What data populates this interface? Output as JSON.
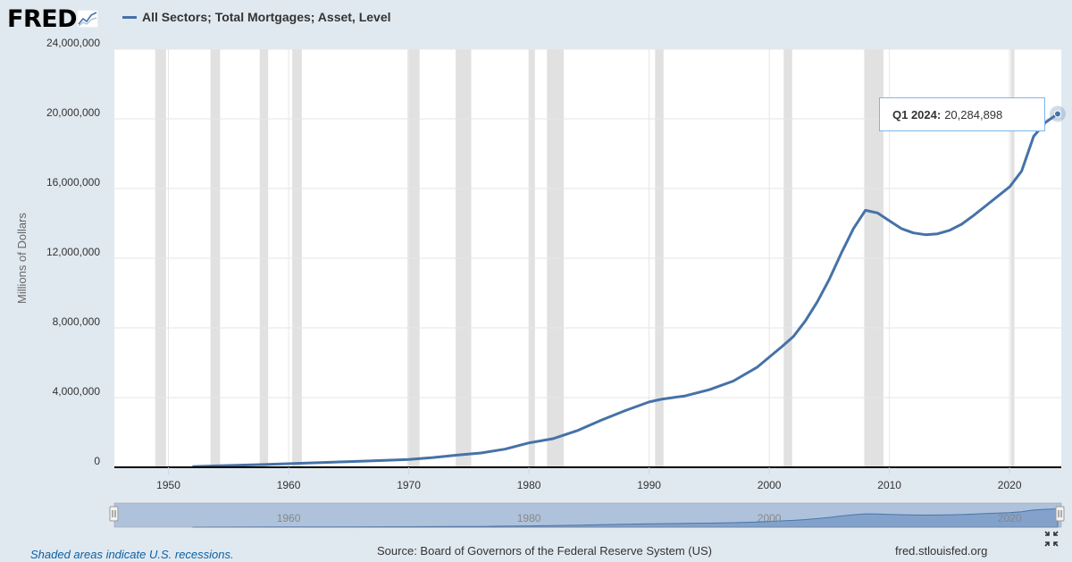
{
  "header": {
    "logo_text": "FRED",
    "series_title": "All Sectors; Total Mortgages; Asset, Level",
    "series_color": "#4572a7"
  },
  "tooltip": {
    "period": "Q1 2024:",
    "value": "20,284,898"
  },
  "navigator": {
    "tick_labels": [
      "1960",
      "1980",
      "2000",
      "2020"
    ]
  },
  "footer": {
    "recession_note": "Shaded areas indicate U.S. recessions.",
    "source": "Source: Board of Governors of the Federal Reserve System (US)",
    "url": "fred.stlouisfed.org"
  },
  "chart_data": {
    "type": "line",
    "title": "",
    "xlabel": "",
    "ylabel": "Millions of Dollars",
    "xlim": [
      1945.5,
      2024.3
    ],
    "ylim": [
      0,
      24000000
    ],
    "x_ticks": [
      "1950",
      "1960",
      "1970",
      "1980",
      "1990",
      "2000",
      "2010",
      "2020"
    ],
    "y_ticks": [
      "0",
      "4,000,000",
      "8,000,000",
      "12,000,000",
      "16,000,000",
      "20,000,000",
      "24,000,000"
    ],
    "grid": true,
    "series": [
      {
        "name": "All Sectors; Total Mortgages; Asset, Level",
        "color": "#4572a7",
        "x": [
          1952,
          1955,
          1958,
          1961,
          1964,
          1967,
          1970,
          1972,
          1974,
          1976,
          1978,
          1980,
          1982,
          1984,
          1986,
          1988,
          1990,
          1991,
          1993,
          1995,
          1997,
          1999,
          2001,
          2002,
          2003,
          2004,
          2005,
          2006,
          2007,
          2008,
          2009,
          2010,
          2011,
          2012,
          2013,
          2014,
          2015,
          2016,
          2017,
          2018,
          2019,
          2020,
          2021,
          2022,
          2023,
          2024
        ],
        "values": [
          40000,
          100000,
          160000,
          230000,
          300000,
          370000,
          450000,
          560000,
          700000,
          820000,
          1040000,
          1400000,
          1640000,
          2100000,
          2700000,
          3250000,
          3750000,
          3900000,
          4100000,
          4450000,
          4950000,
          5750000,
          6900000,
          7500000,
          8400000,
          9500000,
          10800000,
          12300000,
          13700000,
          14750000,
          14600000,
          14150000,
          13700000,
          13450000,
          13350000,
          13400000,
          13600000,
          13950000,
          14450000,
          15000000,
          15550000,
          16100000,
          17000000,
          19000000,
          19800000,
          20284898
        ]
      }
    ],
    "recessions": [
      [
        1948.9,
        1949.8
      ],
      [
        1953.5,
        1954.3
      ],
      [
        1957.6,
        1958.3
      ],
      [
        1960.3,
        1961.1
      ],
      [
        1969.9,
        1970.9
      ],
      [
        1973.9,
        1975.2
      ],
      [
        1980.0,
        1980.5
      ],
      [
        1981.5,
        1982.9
      ],
      [
        1990.5,
        1991.2
      ],
      [
        2001.2,
        2001.9
      ],
      [
        2007.9,
        2009.5
      ],
      [
        2020.1,
        2020.4
      ]
    ]
  }
}
